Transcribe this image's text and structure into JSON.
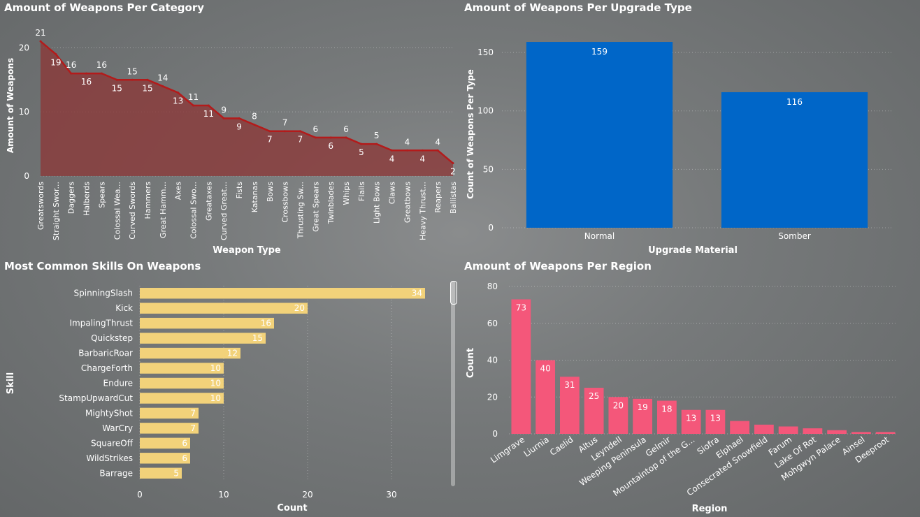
{
  "chart_data": [
    {
      "id": "category",
      "type": "area",
      "title": "Amount of Weapons Per Category",
      "xlabel": "Weapon Type",
      "ylabel": "Amount of Weapons",
      "ylim": [
        0,
        22
      ],
      "yticks": [
        0,
        10,
        20
      ],
      "categories": [
        "Greatswords",
        "Straight Swor...",
        "Daggers",
        "Halberds",
        "Spears",
        "Colossal Wea...",
        "Curved Swords",
        "Hammers",
        "Great Hamm...",
        "Axes",
        "Colossal Swo...",
        "Greataxes",
        "Curved Great...",
        "Fists",
        "Katanas",
        "Bows",
        "Crossbows",
        "Thrusting Sw...",
        "Great Spears",
        "Twinblades",
        "Whips",
        "Flails",
        "Light Bows",
        "Claws",
        "Greatbows",
        "Heavy Thrust...",
        "Reapers",
        "Ballistas"
      ],
      "values": [
        21,
        19,
        16,
        16,
        16,
        15,
        15,
        15,
        14,
        13,
        11,
        11,
        9,
        9,
        8,
        7,
        7,
        7,
        6,
        6,
        6,
        5,
        5,
        4,
        4,
        4,
        4,
        2
      ],
      "colors": {
        "line": "#b31b1b",
        "fill": "#8b3a3a"
      },
      "grid": true
    },
    {
      "id": "upgrade",
      "type": "bar",
      "title": "Amount of Weapons Per Upgrade Type",
      "xlabel": "Upgrade Material",
      "ylabel": "Count of Weapons Per Type",
      "ylim": [
        0,
        165
      ],
      "yticks": [
        0,
        50,
        100,
        150
      ],
      "categories": [
        "Normal",
        "Somber"
      ],
      "values": [
        159,
        116
      ],
      "colors": {
        "bar": "#0066c8"
      },
      "grid": true
    },
    {
      "id": "skills",
      "type": "bar",
      "orientation": "horizontal",
      "title": "Most Common Skills On Weapons",
      "xlabel": "Count",
      "ylabel": "Skill",
      "xlim": [
        0,
        36
      ],
      "xticks": [
        0,
        10,
        20,
        30
      ],
      "categories": [
        "SpinningSlash",
        "Kick",
        "ImpalingThrust",
        "Quickstep",
        "BarbaricRoar",
        "ChargeForth",
        "Endure",
        "StampUpwardCut",
        "MightyShot",
        "WarCry",
        "SquareOff",
        "WildStrikes",
        "Barrage"
      ],
      "values": [
        34,
        20,
        16,
        15,
        12,
        10,
        10,
        10,
        7,
        7,
        6,
        6,
        5
      ],
      "colors": {
        "bar": "#f2d27a"
      },
      "grid": true
    },
    {
      "id": "region",
      "type": "bar",
      "title": "Amount of Weapons Per Region",
      "xlabel": "Region",
      "ylabel": "Count",
      "ylim": [
        0,
        80
      ],
      "yticks": [
        0,
        20,
        40,
        60,
        80
      ],
      "categories": [
        "Limgrave",
        "Liurnia",
        "Caelid",
        "Altus",
        "Leyndell",
        "Weeping Peninsula",
        "Gelmir",
        "Mountaintop of the G...",
        "Siofra",
        "Elphael",
        "Consecrated Snowfield",
        "Farum",
        "Lake Of Rot",
        "Mohgwyn Palace",
        "Ainsel",
        "Deeproot"
      ],
      "values": [
        73,
        40,
        31,
        25,
        20,
        19,
        18,
        13,
        13,
        7,
        5,
        4,
        3,
        2,
        1,
        1
      ],
      "labeled": [
        true,
        true,
        true,
        true,
        true,
        true,
        true,
        true,
        true,
        false,
        false,
        false,
        false,
        false,
        false,
        false
      ],
      "colors": {
        "bar": "#f4577a"
      },
      "grid": true
    }
  ]
}
